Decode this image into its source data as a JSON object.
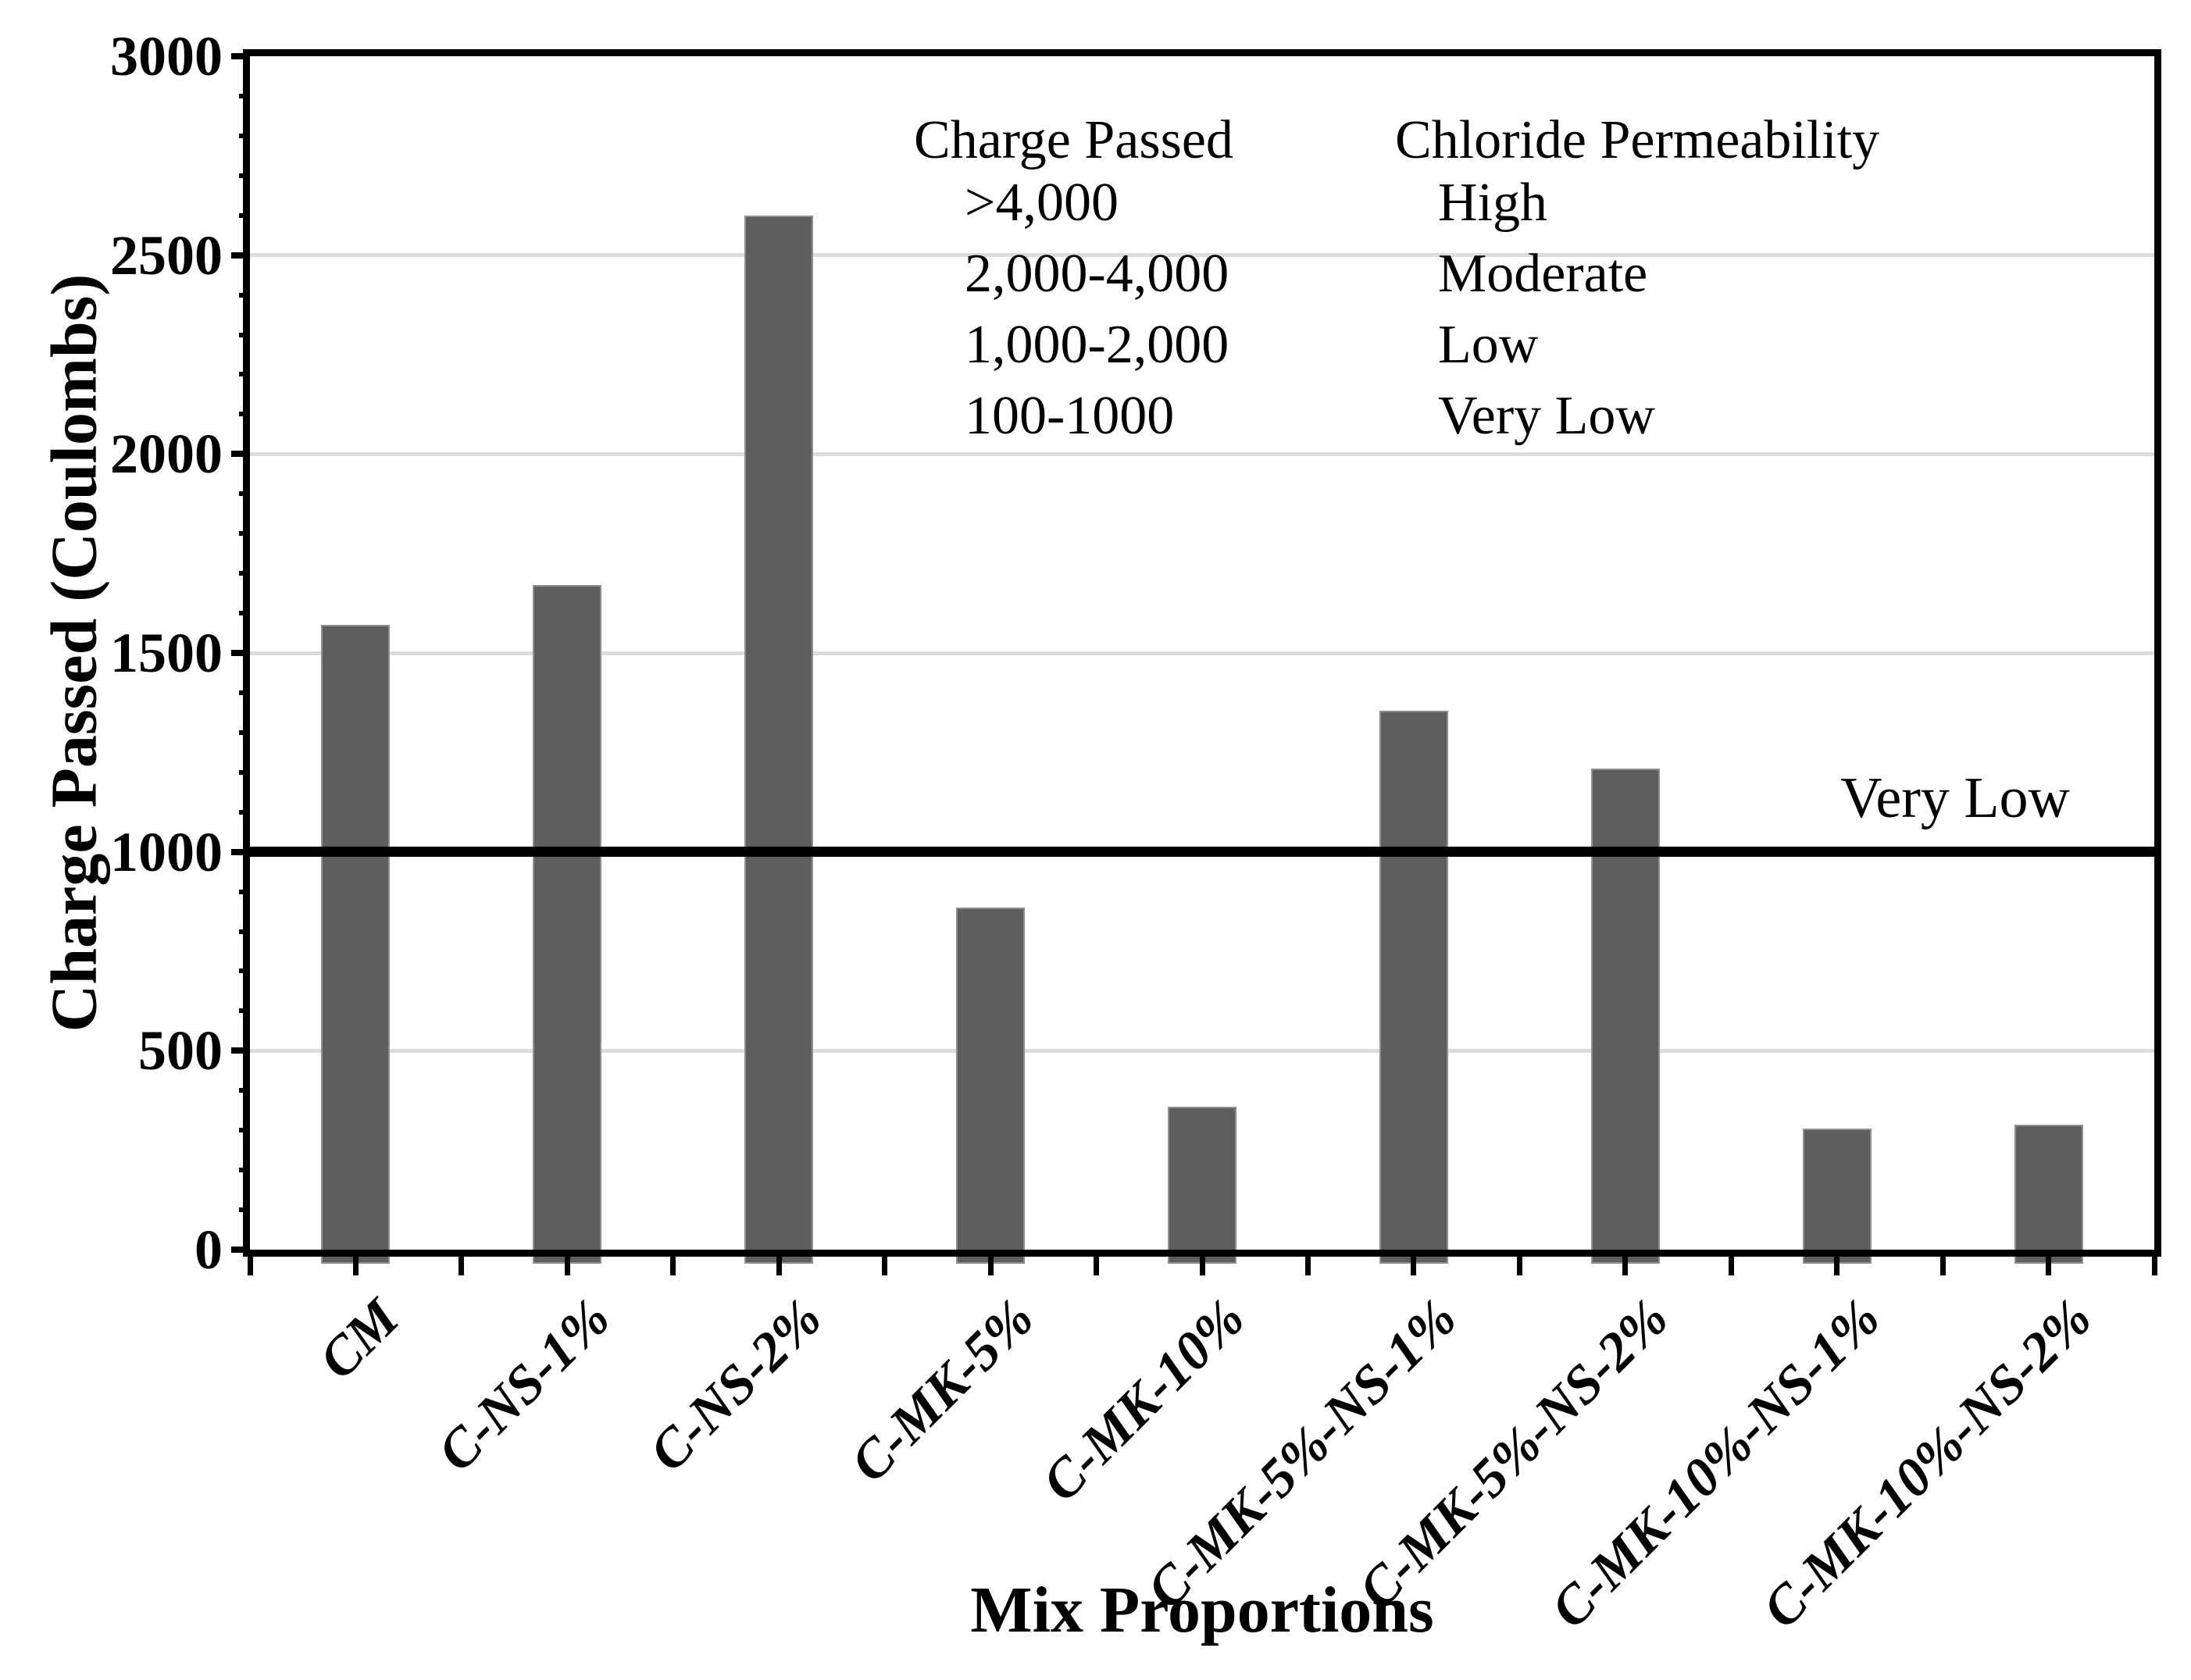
{
  "chart_data": {
    "type": "bar",
    "categories": [
      "CM",
      "C-NS-1%",
      "C-NS-2%",
      "C-MK-5%",
      "C-MK-10%",
      "C-MK-5%-NS-1%",
      "C-MK-5%-NS-2%",
      "C-MK-10%-NS-1%",
      "C-MK-10%-NS-2%"
    ],
    "values": [
      1570,
      1670,
      2600,
      860,
      360,
      1355,
      1210,
      305,
      315
    ],
    "title": "",
    "xlabel": "Mix Proportions",
    "ylabel": "Charge Passed (Coulombs)",
    "ylim": [
      0,
      3000
    ],
    "y_major_step": 500,
    "y_minor_step": 100,
    "grid": "horizontal-major",
    "legend_position": "none",
    "bar_color": "#5e5e5e",
    "gridline_color": "#dcdcdc",
    "axis_color": "#000000",
    "threshold_line": {
      "value": 1000,
      "label": "Very Low"
    }
  },
  "annotation_table": {
    "col1_header": "Charge Passed",
    "col2_header": "Chloride Permeability",
    "rows": [
      {
        "range": ">4,000",
        "level": "High"
      },
      {
        "range": "2,000-4,000",
        "level": "Moderate"
      },
      {
        "range": "1,000-2,000",
        "level": "Low"
      },
      {
        "range": "100-1000",
        "level": "Very Low"
      }
    ]
  }
}
